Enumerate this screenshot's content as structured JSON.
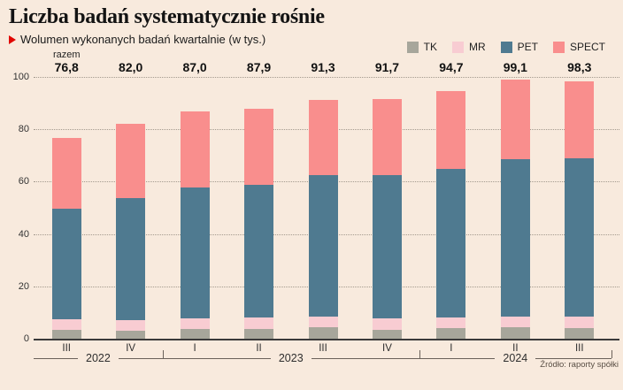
{
  "header": {
    "title": "Liczba badań systematycznie rośnie",
    "subtitle": "Wolumen wykonanych badań kwartalnie (w tys.)"
  },
  "source": "Źródło: raporty spółki",
  "colors": {
    "background": "#f8eadd",
    "accent_red": "#e10600",
    "tk": "#a7a69b",
    "mr": "#f8ccd2",
    "pet": "#4f7a90",
    "spect": "#f98e8d"
  },
  "chart_data": {
    "type": "bar",
    "stacked": true,
    "title": "Liczba badań systematycznie rośnie",
    "subtitle": "Wolumen wykonanych badań kwartalnie (w tys.)",
    "total_label": "razem",
    "categories": [
      "III",
      "IV",
      "I",
      "II",
      "III",
      "IV",
      "I",
      "II",
      "III"
    ],
    "year_groups": [
      {
        "label": "2022",
        "span": 2
      },
      {
        "label": "2023",
        "span": 4
      },
      {
        "label": "2024",
        "span": 3
      }
    ],
    "series": [
      {
        "name": "TK",
        "color": "#a7a69b",
        "values": [
          3.5,
          3.0,
          3.8,
          3.8,
          4.4,
          3.5,
          4.2,
          4.4,
          4.2
        ]
      },
      {
        "name": "MR",
        "color": "#f8ccd2",
        "values": [
          3.9,
          4.2,
          4.0,
          4.2,
          3.9,
          4.3,
          3.8,
          3.9,
          4.1
        ]
      },
      {
        "name": "PET",
        "color": "#4f7a90",
        "values": [
          42.3,
          46.5,
          50.1,
          50.7,
          54.1,
          54.6,
          56.9,
          60.3,
          60.6
        ]
      },
      {
        "name": "SPECT",
        "color": "#f98e8d",
        "values": [
          27.1,
          28.3,
          29.1,
          29.2,
          28.9,
          29.3,
          29.8,
          30.5,
          29.4
        ]
      }
    ],
    "totals_display": [
      "76,8",
      "82,0",
      "87,0",
      "87,9",
      "91,3",
      "91,7",
      "94,7",
      "99,1",
      "98,3"
    ],
    "totals_values": [
      76.8,
      82.0,
      87.0,
      87.9,
      91.3,
      91.7,
      94.7,
      99.1,
      98.3
    ],
    "yticks": [
      0,
      20,
      40,
      60,
      80,
      100
    ],
    "ylim": [
      0,
      100
    ],
    "legend": [
      "TK",
      "MR",
      "PET",
      "SPECT"
    ],
    "legend_position": "top-right",
    "grid": "dotted-horizontal"
  }
}
